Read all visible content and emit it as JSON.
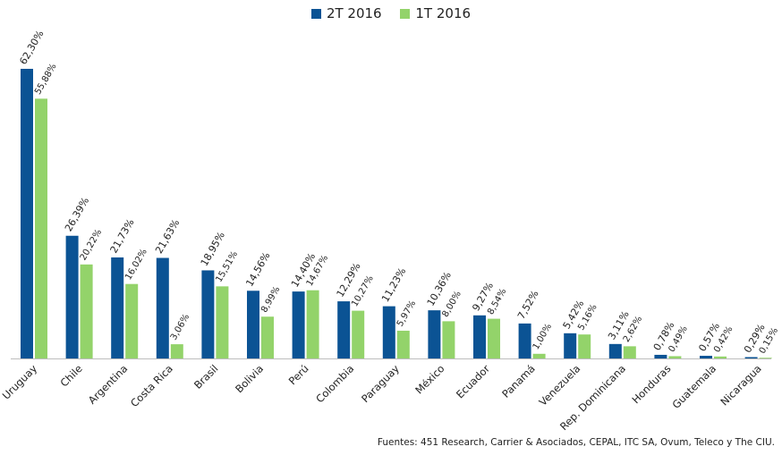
{
  "chart_data": {
    "type": "bar",
    "categories": [
      "Uruguay",
      "Chile",
      "Argentina",
      "Costa Rica",
      "Brasil",
      "Bolivia",
      "Perú",
      "Colombia",
      "Paraguay",
      "México",
      "Ecuador",
      "Panamá",
      "Venezuela",
      "Rep. Dominicana",
      "Honduras",
      "Guatemala",
      "Nicaragua"
    ],
    "series": [
      {
        "name": "2T 2016",
        "color": "#0b5394",
        "values": [
          62.3,
          26.39,
          21.73,
          21.63,
          18.95,
          14.56,
          14.4,
          12.29,
          11.23,
          10.36,
          9.27,
          7.52,
          5.42,
          3.11,
          0.78,
          0.57,
          0.29
        ],
        "labels": [
          "62,30%",
          "26,39%",
          "21,73%",
          "21,63%",
          "18,95%",
          "14,56%",
          "14,40%",
          "12,29%",
          "11,23%",
          "10,36%",
          "9,27%",
          "7,52%",
          "5,42%",
          "3,11%",
          "0,78%",
          "0,57%",
          "0,29%"
        ]
      },
      {
        "name": "1T 2016",
        "color": "#93d36a",
        "values": [
          55.88,
          20.22,
          16.02,
          3.06,
          15.51,
          8.99,
          14.67,
          10.27,
          5.97,
          8.0,
          8.54,
          1.0,
          5.16,
          2.62,
          0.49,
          0.42,
          0.15
        ],
        "labels": [
          "55,88%",
          "20,22%",
          "16,02%",
          "3,06%",
          "15,51%",
          "8,99%",
          "14,67%",
          "10,27%",
          "5,97%",
          "8,00%",
          "8,54%",
          "1,00%",
          "5,16%",
          "2,62%",
          "0,49%",
          "0,42%",
          "0,15%"
        ]
      }
    ],
    "ylim": [
      0,
      62.3
    ],
    "grid": false,
    "legend_position": "top-center",
    "source": "Fuentes: 451 Research,  Carrier & Asociados, CEPAL, ITC SA, Ovum, Teleco y The CIU."
  }
}
